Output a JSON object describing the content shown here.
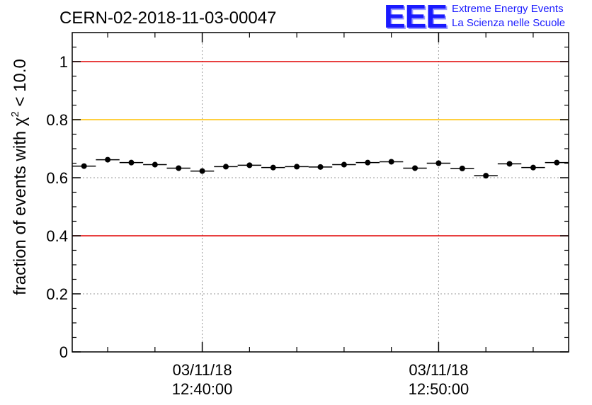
{
  "chart_data": {
    "type": "scatter",
    "title": "CERN-02-2018-11-03-00047",
    "ylabel_prefix": "fraction of events with ",
    "ylabel_symbol": "χ",
    "ylabel_superscript": "2",
    "ylabel_suffix": " < 10.0",
    "xlabel": "",
    "ylim": [
      0,
      1.1
    ],
    "yticks": [
      "0",
      "0.2",
      "0.4",
      "0.6",
      "0.8",
      "1"
    ],
    "ytick_values": [
      0,
      0.2,
      0.4,
      0.6,
      0.8,
      1.0
    ],
    "xlim": [
      "12:34:30",
      "12:55:30"
    ],
    "xticks": [
      {
        "value": "12:40:00",
        "date": "03/11/18",
        "time": "12:40:00"
      },
      {
        "value": "12:50:00",
        "date": "03/11/18",
        "time": "12:50:00"
      }
    ],
    "grid": "dotted",
    "reference_lines": [
      {
        "y": 1.0,
        "color": "#e00000"
      },
      {
        "y": 0.8,
        "color": "#ffc000"
      },
      {
        "y": 0.4,
        "color": "#e00000"
      }
    ],
    "bin_width_minutes": 1,
    "x": [
      "12:35:00",
      "12:36:00",
      "12:37:00",
      "12:38:00",
      "12:39:00",
      "12:40:00",
      "12:41:00",
      "12:42:00",
      "12:43:00",
      "12:44:00",
      "12:45:00",
      "12:46:00",
      "12:47:00",
      "12:48:00",
      "12:49:00",
      "12:50:00",
      "12:51:00",
      "12:52:00",
      "12:53:00",
      "12:54:00",
      "12:55:00"
    ],
    "values": [
      0.64,
      0.662,
      0.652,
      0.645,
      0.633,
      0.623,
      0.638,
      0.643,
      0.635,
      0.638,
      0.637,
      0.645,
      0.652,
      0.655,
      0.633,
      0.65,
      0.632,
      0.607,
      0.648,
      0.635,
      0.652
    ]
  },
  "logo": {
    "mark": "EEE",
    "line1": "Extreme Energy Events",
    "line2": "La Scienza nelle Scuole"
  }
}
